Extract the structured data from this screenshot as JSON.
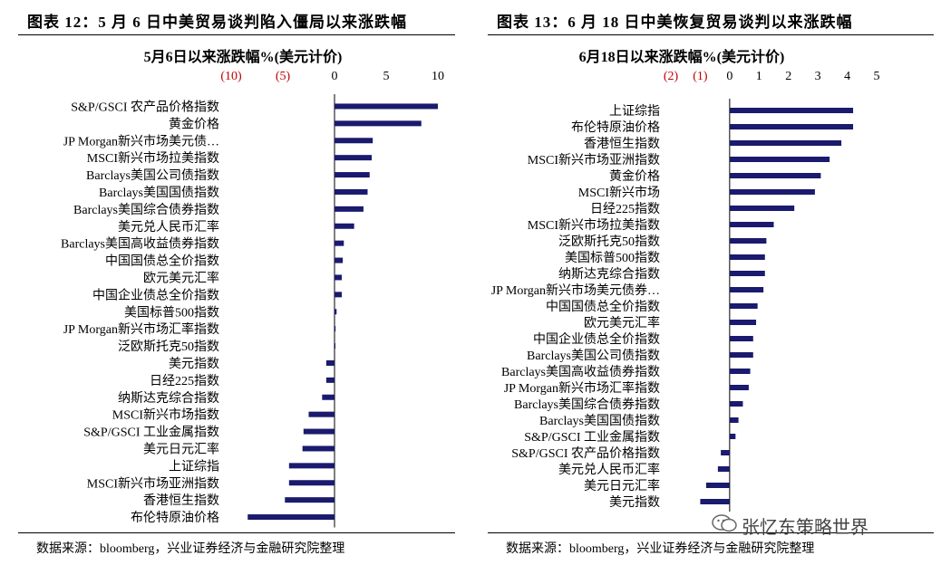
{
  "figures": [
    {
      "title": "图表 12：5 月 6 日中美贸易谈判陷入僵局以来涨跌幅",
      "source": "数据来源：bloomberg，兴业证券经济与金融研究院整理"
    },
    {
      "title": "图表 13：6 月 18 日中美恢复贸易谈判以来涨跌幅",
      "source": "数据来源：bloomberg，兴业证券经济与金融研究院整理"
    }
  ],
  "watermark": "张忆东策略世界",
  "colors": {
    "bar": "#1a1a6e",
    "negative_tick": "#c00000"
  },
  "chart_data": [
    {
      "type": "bar",
      "orientation": "horizontal",
      "title": "5月6日以来涨跌幅%(美元计价)",
      "xlim": [
        -10,
        10
      ],
      "ticks": [
        -10,
        -5,
        0,
        5,
        10
      ],
      "tick_labels": [
        "(10)",
        "(5)",
        "0",
        "5",
        "10"
      ],
      "categories": [
        "S&P/GSCI 农产品价格指数",
        "黄金价格",
        "JP Morgan新兴市场美元债…",
        "MSCI新兴市场拉美指数",
        "Barclays美国公司债指数",
        "Barclays美国国债指数",
        "Barclays美国综合债券指数",
        "美元兑人民币汇率",
        "Barclays美国高收益债券指数",
        "中国国债总全价指数",
        "欧元美元汇率",
        "中国企业债总全价指数",
        "美国标普500指数",
        "JP Morgan新兴市场汇率指数",
        "泛欧斯托克50指数",
        "美元指数",
        "日经225指数",
        "纳斯达克综合指数",
        "MSCI新兴市场指数",
        "S&P/GSCI 工业金属指数",
        "美元日元汇率",
        "上证综指",
        "MSCI新兴市场亚洲指数",
        "香港恒生指数",
        "布伦特原油价格"
      ],
      "values": [
        10.0,
        8.4,
        3.7,
        3.6,
        3.4,
        3.2,
        2.8,
        1.9,
        0.9,
        0.8,
        0.7,
        0.7,
        0.2,
        0.1,
        0.05,
        -0.8,
        -0.8,
        -1.2,
        -2.5,
        -3.0,
        -3.1,
        -4.4,
        -4.4,
        -4.8,
        -8.4
      ]
    },
    {
      "type": "bar",
      "orientation": "horizontal",
      "title": "6月18日以来涨跌幅%(美元计价)",
      "xlim": [
        -2,
        5
      ],
      "ticks": [
        -2,
        -1,
        0,
        1,
        2,
        3,
        4,
        5
      ],
      "tick_labels": [
        "(2)",
        "(1)",
        "0",
        "1",
        "2",
        "3",
        "4",
        "5"
      ],
      "categories": [
        "上证综指",
        "布伦特原油价格",
        "香港恒生指数",
        "MSCI新兴市场亚洲指数",
        "黄金价格",
        "MSCI新兴市场",
        "日经225指数",
        "MSCI新兴市场拉美指数",
        "泛欧斯托克50指数",
        "美国标普500指数",
        "纳斯达克综合指数",
        "JP Morgan新兴市场美元债券…",
        "中国国债总全价指数",
        "欧元美元汇率",
        "中国企业债总全价指数",
        "Barclays美国公司债指数",
        "Barclays美国高收益债券指数",
        "JP Morgan新兴市场汇率指数",
        "Barclays美国综合债券指数",
        "Barclays美国国债指数",
        "S&P/GSCI 工业金属指数",
        "S&P/GSCI 农产品价格指数",
        "美元兑人民币汇率",
        "美元日元汇率",
        "美元指数"
      ],
      "values": [
        4.2,
        4.2,
        3.8,
        3.4,
        3.1,
        2.9,
        2.2,
        1.5,
        1.25,
        1.2,
        1.2,
        1.15,
        0.95,
        0.9,
        0.8,
        0.8,
        0.7,
        0.65,
        0.45,
        0.3,
        0.2,
        -0.3,
        -0.4,
        -0.8,
        -1.0
      ]
    }
  ]
}
